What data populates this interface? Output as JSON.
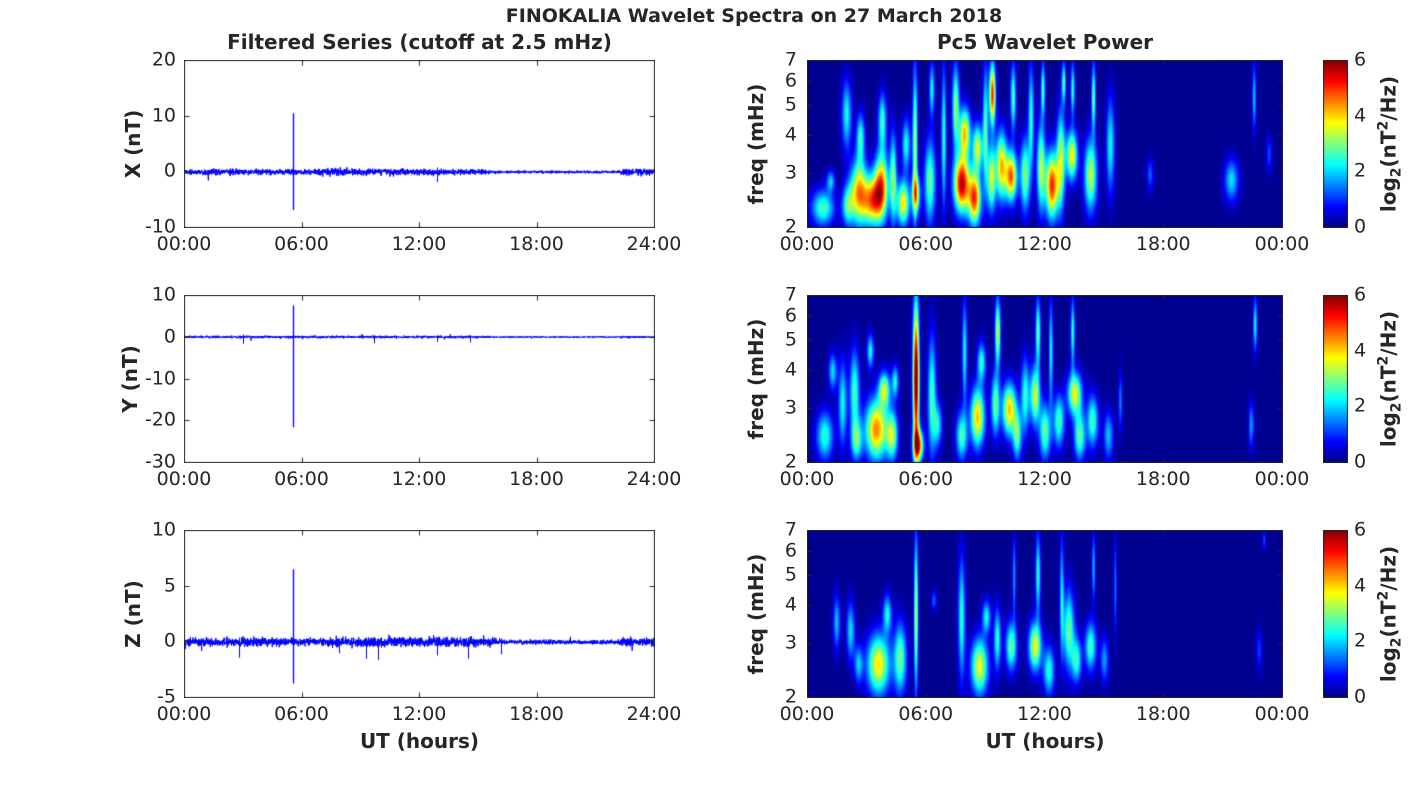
{
  "figure": {
    "suptitle": "FINOKALIA Wavelet Spectra on 27 March 2018",
    "background": "#ffffff",
    "axes_color": "#262626",
    "text_color": "#262626",
    "series_color": "#0000ff",
    "colormap": "jet",
    "colorbar_label": {
      "p1": "log",
      "sub": "2",
      "p2": "(nT",
      "sup": "2",
      "p3": "/Hz)"
    }
  },
  "chart_data": [
    {
      "type": "line",
      "id": "filtered-series-x",
      "title": "Filtered Series (cutoff at 2.5 mHz)",
      "component": "X",
      "ylabel": "X (nT)",
      "xlabel": "",
      "xlim_hours": [
        0,
        24
      ],
      "xticks": [
        "00:00",
        "06:00",
        "12:00",
        "18:00",
        "24:00"
      ],
      "ylim": [
        -10,
        20
      ],
      "yticks": [
        -10,
        0,
        10,
        20
      ],
      "baseline_nT": 0,
      "noise": {
        "base": 0.12,
        "windows": [
          [
            0,
            15.6,
            0.25
          ],
          [
            6.8,
            11.2,
            0.32
          ],
          [
            22.3,
            24,
            0.28
          ]
        ]
      },
      "spikes_t_max_min": [
        [
          5.58,
          10.5,
          -6.8
        ],
        [
          12.9,
          0.8,
          -1.8
        ]
      ]
    },
    {
      "type": "line",
      "id": "filtered-series-y",
      "title": "",
      "component": "Y",
      "ylabel": "Y (nT)",
      "xlabel": "",
      "xlim_hours": [
        0,
        24
      ],
      "xticks": [
        "00:00",
        "06:00",
        "12:00",
        "18:00",
        "24:00"
      ],
      "ylim": [
        -30,
        10
      ],
      "yticks": [
        -30,
        -20,
        -10,
        0,
        10
      ],
      "baseline_nT": 0,
      "noise": {
        "base": 0.08,
        "windows": [
          [
            0,
            15.6,
            0.14
          ],
          [
            22.3,
            24,
            0.12
          ]
        ]
      },
      "spikes_t_max_min": [
        [
          5.58,
          7.5,
          -21.5
        ],
        [
          3.0,
          0.6,
          -1.6
        ],
        [
          9.7,
          0.5,
          -1.5
        ],
        [
          12.9,
          0.4,
          -1.2
        ],
        [
          14.6,
          0.4,
          -1.3
        ]
      ]
    },
    {
      "type": "line",
      "id": "filtered-series-z",
      "title": "",
      "component": "Z",
      "ylabel": "Z (nT)",
      "xlabel": "UT (hours)",
      "xlim_hours": [
        0,
        24
      ],
      "xticks": [
        "00:00",
        "06:00",
        "12:00",
        "18:00",
        "24:00"
      ],
      "ylim": [
        -5,
        10
      ],
      "yticks": [
        -5,
        0,
        5,
        10
      ],
      "baseline_nT": 0,
      "noise": {
        "base": 0.1,
        "windows": [
          [
            0,
            16,
            0.17
          ],
          [
            3,
            4.6,
            0.21
          ],
          [
            7.5,
            15.6,
            0.21
          ],
          [
            22.3,
            24,
            0.19
          ]
        ]
      },
      "spikes_t_max_min": [
        [
          5.58,
          6.5,
          -3.7
        ],
        [
          2.8,
          0.4,
          -1.4
        ],
        [
          7.9,
          0.3,
          -1.0
        ],
        [
          9.3,
          0.4,
          -1.5
        ],
        [
          9.9,
          0.3,
          -1.6
        ],
        [
          12.9,
          0.3,
          -1.2
        ],
        [
          14.5,
          0.4,
          -1.5
        ],
        [
          16.2,
          0.3,
          -1.1
        ]
      ]
    },
    {
      "type": "heatmap",
      "id": "pc5-wavelet-power-x",
      "title": "Pc5 Wavelet Power",
      "component": "X",
      "ylabel": "freq (mHz)",
      "xlabel": "",
      "xlim_hours": [
        0,
        24
      ],
      "xticks": [
        "00:00",
        "06:00",
        "12:00",
        "18:00",
        "00:00"
      ],
      "freq_lim_mHz": [
        2,
        7
      ],
      "yticks": [
        2,
        3,
        4,
        5,
        6,
        7
      ],
      "yscale": "log",
      "power_lim_log2": [
        0,
        6
      ],
      "colorbar_ticks": [
        0,
        2,
        4,
        6
      ],
      "background_power": 0.1,
      "events_t_f1_f2_w_amp": [
        [
          0.8,
          2.0,
          2.7,
          0.8,
          2.6
        ],
        [
          1.2,
          2.6,
          3.1,
          0.3,
          1.8
        ],
        [
          2.0,
          3.5,
          6.2,
          0.35,
          2.2
        ],
        [
          2.05,
          2.0,
          2.8,
          0.4,
          2.4
        ],
        [
          2.6,
          2.0,
          3.4,
          0.6,
          4.0
        ],
        [
          2.7,
          3.2,
          4.8,
          0.3,
          2.4
        ],
        [
          3.3,
          2.0,
          3.0,
          0.7,
          4.2
        ],
        [
          3.75,
          2.1,
          3.6,
          0.5,
          4.2
        ],
        [
          3.8,
          3.5,
          5.6,
          0.3,
          2.5
        ],
        [
          4.35,
          2.0,
          4.2,
          0.25,
          2.8
        ],
        [
          4.85,
          2.0,
          2.9,
          0.45,
          3.8
        ],
        [
          5.0,
          3.0,
          4.6,
          0.3,
          2.3
        ],
        [
          5.45,
          2.0,
          7.0,
          0.18,
          3.2
        ],
        [
          5.5,
          2.2,
          3.0,
          0.3,
          3.2
        ],
        [
          6.2,
          2.0,
          4.0,
          0.4,
          2.8
        ],
        [
          6.3,
          4.5,
          7.0,
          0.2,
          2.2
        ],
        [
          6.9,
          2.2,
          7.0,
          0.18,
          2.4
        ],
        [
          7.5,
          3.5,
          7.0,
          0.25,
          3.0
        ],
        [
          7.8,
          2.2,
          3.5,
          0.55,
          5.6
        ],
        [
          7.95,
          3.3,
          5.0,
          0.4,
          4.0
        ],
        [
          8.45,
          2.0,
          3.1,
          0.45,
          4.8
        ],
        [
          8.6,
          3.0,
          4.4,
          0.35,
          3.5
        ],
        [
          9.0,
          2.5,
          7.0,
          0.2,
          2.6
        ],
        [
          9.35,
          4.2,
          7.0,
          0.22,
          5.0
        ],
        [
          9.3,
          2.2,
          3.8,
          0.3,
          3.4
        ],
        [
          9.8,
          2.4,
          4.2,
          0.4,
          4.0
        ],
        [
          10.3,
          2.4,
          3.6,
          0.4,
          4.6
        ],
        [
          10.4,
          4.0,
          7.0,
          0.2,
          2.6
        ],
        [
          11.0,
          2.2,
          4.0,
          0.35,
          3.0
        ],
        [
          11.3,
          3.0,
          7.0,
          0.2,
          2.4
        ],
        [
          11.8,
          2.2,
          4.5,
          0.3,
          3.2
        ],
        [
          11.9,
          4.5,
          7.0,
          0.15,
          2.6
        ],
        [
          12.35,
          2.1,
          3.6,
          0.45,
          5.0
        ],
        [
          12.8,
          2.2,
          5.0,
          0.3,
          3.2
        ],
        [
          12.95,
          5.0,
          7.0,
          0.15,
          2.6
        ],
        [
          13.35,
          2.8,
          4.2,
          0.4,
          3.8
        ],
        [
          13.4,
          4.5,
          7.0,
          0.15,
          2.4
        ],
        [
          14.3,
          2.2,
          4.0,
          0.45,
          3.3
        ],
        [
          14.45,
          4.0,
          7.0,
          0.15,
          2.8
        ],
        [
          15.3,
          2.5,
          5.5,
          0.3,
          2.2
        ],
        [
          17.3,
          2.6,
          3.4,
          0.25,
          1.2
        ],
        [
          21.4,
          2.4,
          3.4,
          0.5,
          2.0
        ],
        [
          22.55,
          4.0,
          7.0,
          0.15,
          1.8
        ],
        [
          23.3,
          3.0,
          4.0,
          0.2,
          1.1
        ]
      ]
    },
    {
      "type": "heatmap",
      "id": "pc5-wavelet-power-y",
      "title": "",
      "component": "Y",
      "ylabel": "freq (mHz)",
      "xlabel": "",
      "xlim_hours": [
        0,
        24
      ],
      "xticks": [
        "00:00",
        "06:00",
        "12:00",
        "18:00",
        "00:00"
      ],
      "freq_lim_mHz": [
        2,
        7
      ],
      "yticks": [
        2,
        3,
        4,
        5,
        6,
        7
      ],
      "yscale": "log",
      "power_lim_log2": [
        0,
        6
      ],
      "colorbar_ticks": [
        0,
        2,
        4,
        6
      ],
      "background_power": 0.1,
      "events_t_f1_f2_w_amp": [
        [
          0.9,
          2.0,
          3.0,
          0.6,
          2.4
        ],
        [
          1.3,
          3.4,
          4.6,
          0.3,
          2.0
        ],
        [
          1.8,
          2.2,
          4.4,
          0.3,
          2.2
        ],
        [
          2.4,
          2.4,
          4.8,
          0.35,
          2.6
        ],
        [
          2.5,
          2.0,
          2.8,
          0.4,
          2.4
        ],
        [
          3.2,
          4.0,
          5.3,
          0.25,
          2.2
        ],
        [
          3.5,
          2.0,
          3.3,
          0.8,
          4.4
        ],
        [
          3.9,
          3.0,
          4.0,
          0.4,
          3.2
        ],
        [
          4.3,
          2.0,
          3.0,
          0.4,
          3.0
        ],
        [
          4.45,
          3.2,
          4.2,
          0.25,
          2.2
        ],
        [
          5.5,
          2.0,
          7.0,
          0.22,
          6.4
        ],
        [
          5.62,
          2.0,
          2.6,
          0.35,
          4.6
        ],
        [
          6.3,
          2.0,
          5.4,
          0.3,
          2.6
        ],
        [
          6.6,
          2.2,
          3.2,
          0.3,
          2.0
        ],
        [
          7.8,
          2.0,
          3.0,
          0.4,
          2.6
        ],
        [
          7.95,
          3.0,
          7.0,
          0.18,
          2.2
        ],
        [
          8.6,
          2.2,
          3.6,
          0.5,
          4.0
        ],
        [
          8.8,
          3.6,
          5.0,
          0.3,
          2.4
        ],
        [
          9.5,
          2.4,
          4.0,
          0.3,
          2.8
        ],
        [
          9.62,
          4.0,
          7.0,
          0.2,
          3.4
        ],
        [
          10.2,
          2.4,
          3.7,
          0.5,
          4.0
        ],
        [
          10.6,
          2.0,
          3.0,
          0.3,
          2.6
        ],
        [
          11.0,
          2.4,
          4.5,
          0.3,
          2.4
        ],
        [
          11.5,
          2.6,
          4.2,
          0.35,
          3.4
        ],
        [
          11.65,
          4.0,
          7.0,
          0.18,
          2.8
        ],
        [
          12.0,
          2.0,
          3.2,
          0.4,
          2.8
        ],
        [
          12.3,
          3.0,
          7.0,
          0.15,
          2.2
        ],
        [
          12.7,
          2.2,
          3.4,
          0.4,
          2.6
        ],
        [
          13.5,
          2.8,
          4.0,
          0.5,
          3.6
        ],
        [
          13.4,
          4.0,
          7.0,
          0.15,
          2.4
        ],
        [
          13.75,
          2.0,
          3.0,
          0.4,
          2.8
        ],
        [
          14.4,
          2.2,
          3.4,
          0.4,
          2.6
        ],
        [
          15.2,
          2.0,
          3.0,
          0.35,
          1.8
        ],
        [
          15.8,
          2.5,
          4.0,
          0.15,
          1.4
        ],
        [
          22.4,
          2.2,
          3.2,
          0.2,
          1.6
        ],
        [
          22.6,
          4.5,
          7.0,
          0.15,
          2.2
        ]
      ]
    },
    {
      "type": "heatmap",
      "id": "pc5-wavelet-power-z",
      "title": "",
      "component": "Z",
      "ylabel": "freq (mHz)",
      "xlabel": "UT (hours)",
      "xlim_hours": [
        0,
        24
      ],
      "xticks": [
        "00:00",
        "06:00",
        "12:00",
        "18:00",
        "00:00"
      ],
      "freq_lim_mHz": [
        2,
        7
      ],
      "yticks": [
        2,
        3,
        4,
        5,
        6,
        7
      ],
      "yscale": "log",
      "power_lim_log2": [
        0,
        6
      ],
      "colorbar_ticks": [
        0,
        2,
        4,
        6
      ],
      "background_power": 0.1,
      "events_t_f1_f2_w_amp": [
        [
          1.5,
          2.8,
          4.4,
          0.25,
          1.8
        ],
        [
          2.2,
          2.6,
          4.2,
          0.3,
          2.0
        ],
        [
          2.6,
          2.2,
          3.0,
          0.3,
          1.8
        ],
        [
          3.6,
          2.0,
          3.3,
          0.8,
          3.8
        ],
        [
          4.05,
          3.2,
          4.4,
          0.3,
          2.2
        ],
        [
          4.7,
          2.0,
          3.6,
          0.45,
          2.8
        ],
        [
          5.5,
          2.0,
          7.0,
          0.15,
          3.4
        ],
        [
          6.4,
          3.8,
          4.5,
          0.2,
          1.2
        ],
        [
          7.8,
          2.2,
          6.0,
          0.25,
          2.4
        ],
        [
          8.7,
          2.0,
          3.2,
          0.6,
          3.6
        ],
        [
          9.05,
          3.2,
          4.2,
          0.3,
          2.2
        ],
        [
          9.6,
          2.4,
          4.0,
          0.25,
          2.4
        ],
        [
          10.3,
          2.4,
          3.6,
          0.4,
          2.8
        ],
        [
          10.45,
          3.5,
          7.0,
          0.12,
          1.6
        ],
        [
          11.5,
          2.4,
          3.6,
          0.45,
          3.6
        ],
        [
          11.65,
          3.6,
          7.0,
          0.18,
          2.4
        ],
        [
          12.2,
          2.0,
          3.0,
          0.4,
          2.4
        ],
        [
          12.85,
          2.6,
          7.0,
          0.15,
          2.0
        ],
        [
          13.2,
          2.4,
          4.6,
          0.4,
          2.8
        ],
        [
          13.6,
          2.2,
          3.2,
          0.35,
          2.4
        ],
        [
          14.3,
          2.4,
          3.6,
          0.4,
          2.6
        ],
        [
          14.45,
          4.0,
          7.0,
          0.12,
          1.8
        ],
        [
          15.0,
          2.2,
          3.2,
          0.3,
          1.6
        ],
        [
          15.55,
          3.0,
          7.0,
          0.1,
          1.4
        ],
        [
          22.8,
          2.4,
          3.4,
          0.2,
          1.0
        ],
        [
          23.05,
          6.0,
          7.0,
          0.1,
          1.2
        ]
      ]
    }
  ]
}
